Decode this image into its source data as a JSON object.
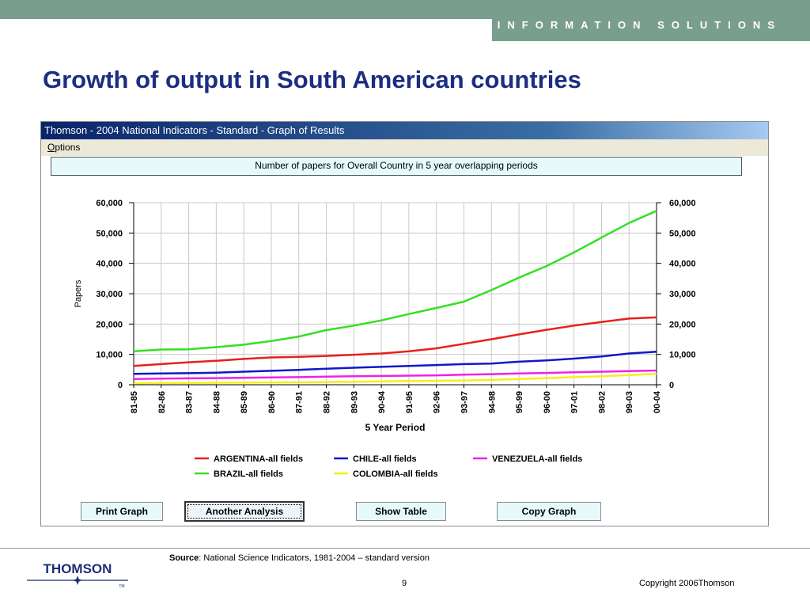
{
  "header": {
    "tagline": "INFORMATION SOLUTIONS"
  },
  "slide": {
    "title": "Growth of output in South American countries"
  },
  "window": {
    "title": "Thomson - 2004 National Indicators - Standard - Graph of Results",
    "menu_options_u": "O",
    "menu_options_rest": "ptions"
  },
  "buttons": {
    "print": "Print Graph",
    "another": "Another Analysis",
    "show_table": "Show Table",
    "copy": "Copy Graph"
  },
  "footer": {
    "source_label": "Source",
    "source_text": ": National Science Indicators, 1981-2004 – standard version",
    "page": "9",
    "copyright": "Copyright 2006Thomson",
    "logo_text": "THOMSON",
    "logo_tm": "TM"
  },
  "chart_data": {
    "type": "line",
    "title": "Number of papers for Overall Country in 5 year overlapping periods",
    "xlabel": "5 Year Period",
    "ylabel": "Papers",
    "ylim": [
      0,
      60000
    ],
    "yticks": [
      "0",
      "10,000",
      "20,000",
      "30,000",
      "40,000",
      "50,000",
      "60,000"
    ],
    "grid": true,
    "legend_position": "bottom",
    "categories": [
      "81-85",
      "82-86",
      "83-87",
      "84-88",
      "85-89",
      "86-90",
      "87-91",
      "88-92",
      "89-93",
      "90-94",
      "91-95",
      "92-96",
      "93-97",
      "94-98",
      "95-99",
      "96-00",
      "97-01",
      "98-02",
      "99-03",
      "00-04"
    ],
    "series": [
      {
        "name": "ARGENTINA-all fields",
        "color": "#e8201c",
        "values": [
          6200,
          6800,
          7400,
          7900,
          8500,
          9000,
          9200,
          9500,
          9900,
          10300,
          11000,
          12000,
          13500,
          15000,
          16600,
          18100,
          19500,
          20700,
          21800,
          22200
        ]
      },
      {
        "name": "CHILE-all fields",
        "color": "#1018c8",
        "values": [
          3600,
          3700,
          3800,
          4000,
          4300,
          4600,
          4900,
          5300,
          5600,
          5900,
          6200,
          6500,
          6800,
          7000,
          7600,
          8000,
          8600,
          9300,
          10300,
          10900
        ]
      },
      {
        "name": "VENEZUELA-all fields",
        "color": "#ee22e8",
        "values": [
          1900,
          2000,
          2100,
          2200,
          2300,
          2400,
          2500,
          2700,
          2800,
          2900,
          3000,
          3100,
          3300,
          3500,
          3700,
          3900,
          4100,
          4300,
          4500,
          4700
        ]
      },
      {
        "name": "BRAZIL-all fields",
        "color": "#33e024",
        "values": [
          11000,
          11600,
          11700,
          12400,
          13200,
          14400,
          15900,
          18000,
          19500,
          21200,
          23300,
          25300,
          27400,
          31200,
          35300,
          39100,
          43600,
          48500,
          53300,
          57300
        ]
      },
      {
        "name": "COLOMBIA-all fields",
        "color": "#f4ef1c",
        "values": [
          500,
          550,
          600,
          650,
          700,
          750,
          800,
          900,
          1000,
          1100,
          1200,
          1300,
          1400,
          1600,
          1900,
          2200,
          2500,
          2800,
          3200,
          3600
        ]
      }
    ]
  }
}
